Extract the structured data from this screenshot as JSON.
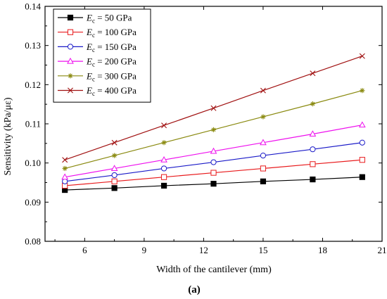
{
  "chart_data": {
    "type": "line",
    "xlabel": "Width of the cantilever (mm)",
    "ylabel": "Sensitivity (kPa/με)",
    "xlim": [
      4,
      21
    ],
    "ylim": [
      0.08,
      0.14
    ],
    "xticks": [
      6,
      9,
      12,
      15,
      18,
      21
    ],
    "xtick_labels": [
      "6",
      "9",
      "12",
      "15",
      "18",
      "21"
    ],
    "yticks": [
      0.08,
      0.09,
      0.1,
      0.11,
      0.12,
      0.13,
      0.14
    ],
    "ytick_labels": [
      "0.08",
      "0.09",
      "0.10",
      "0.11",
      "0.12",
      "0.13",
      "0.14"
    ],
    "grid": false,
    "legend_position": "top-left",
    "x": [
      5,
      7.5,
      10,
      12.5,
      15,
      17.5,
      20
    ],
    "series": [
      {
        "name_main": "E",
        "name_sub": "c",
        "name_rest": " = 50 GPa",
        "color": "#000000",
        "marker": "filled-square",
        "values": [
          0.0931,
          0.0936,
          0.0942,
          0.0947,
          0.0953,
          0.0958,
          0.0964
        ]
      },
      {
        "name_main": "E",
        "name_sub": "c",
        "name_rest": " = 100 GPa",
        "color": "#e8191b",
        "marker": "open-square",
        "values": [
          0.0942,
          0.0953,
          0.0964,
          0.0975,
          0.0986,
          0.0997,
          0.1008
        ]
      },
      {
        "name_main": "E",
        "name_sub": "c",
        "name_rest": " = 150 GPa",
        "color": "#1a1ac8",
        "marker": "open-circle",
        "values": [
          0.0953,
          0.0969,
          0.0986,
          0.1002,
          0.1019,
          0.1035,
          0.1052
        ]
      },
      {
        "name_main": "E",
        "name_sub": "c",
        "name_rest": " = 200 GPa",
        "color": "#ee10ee",
        "marker": "open-triangle",
        "values": [
          0.0964,
          0.0986,
          0.1008,
          0.103,
          0.1052,
          0.1074,
          0.1097
        ]
      },
      {
        "name_main": "E",
        "name_sub": "c",
        "name_rest": " = 300 GPa",
        "color": "#8a8a10",
        "marker": "asterisk",
        "values": [
          0.0986,
          0.1019,
          0.1052,
          0.1085,
          0.1118,
          0.1151,
          0.1185
        ]
      },
      {
        "name_main": "E",
        "name_sub": "c",
        "name_rest": " = 400 GPa",
        "color": "#a01010",
        "marker": "x-cross",
        "values": [
          0.1008,
          0.1052,
          0.1096,
          0.114,
          0.1185,
          0.1229,
          0.1273
        ]
      }
    ]
  },
  "caption": "(a)"
}
